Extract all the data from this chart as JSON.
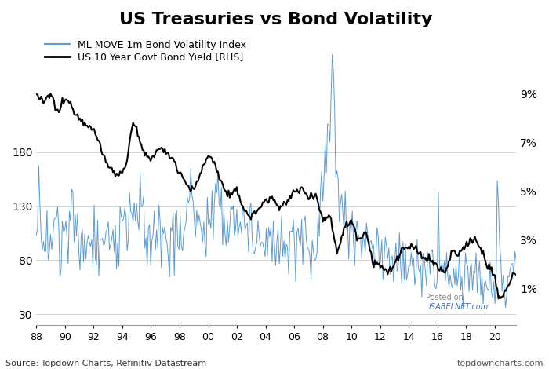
{
  "title": "US Treasuries vs Bond Volatility",
  "title_fontsize": 16,
  "legend_line1": "ML MOVE 1m Bond Volatility Index",
  "legend_line2": "US 10 Year Govt Bond Yield [RHS]",
  "source_text": "Source: Topdown Charts, Refinitiv Datastream",
  "watermark": "topdowncharts.com",
  "posted_on": "Posted on",
  "isabelnet": "ISABELNET.com",
  "bg_color": "#ffffff",
  "plot_bg_color": "#ffffff",
  "move_color": "#5b9bd5",
  "yield_color": "#000000",
  "xlim": [
    1988,
    2021.5
  ],
  "left_yticks": [
    30,
    80,
    130,
    180
  ],
  "right_yticks": [
    1,
    3,
    5,
    7,
    9
  ],
  "right_ytick_labels": [
    "1%",
    "3%",
    "5%",
    "7%",
    "9%"
  ],
  "xtick_labels": [
    "88",
    "90",
    "92",
    "94",
    "96",
    "98",
    "00",
    "02",
    "04",
    "06",
    "08",
    "10",
    "12",
    "14",
    "16",
    "18",
    "20"
  ],
  "ylim_left": [
    20,
    290
  ],
  "ylim_right": [
    -0.5,
    11.5
  ]
}
